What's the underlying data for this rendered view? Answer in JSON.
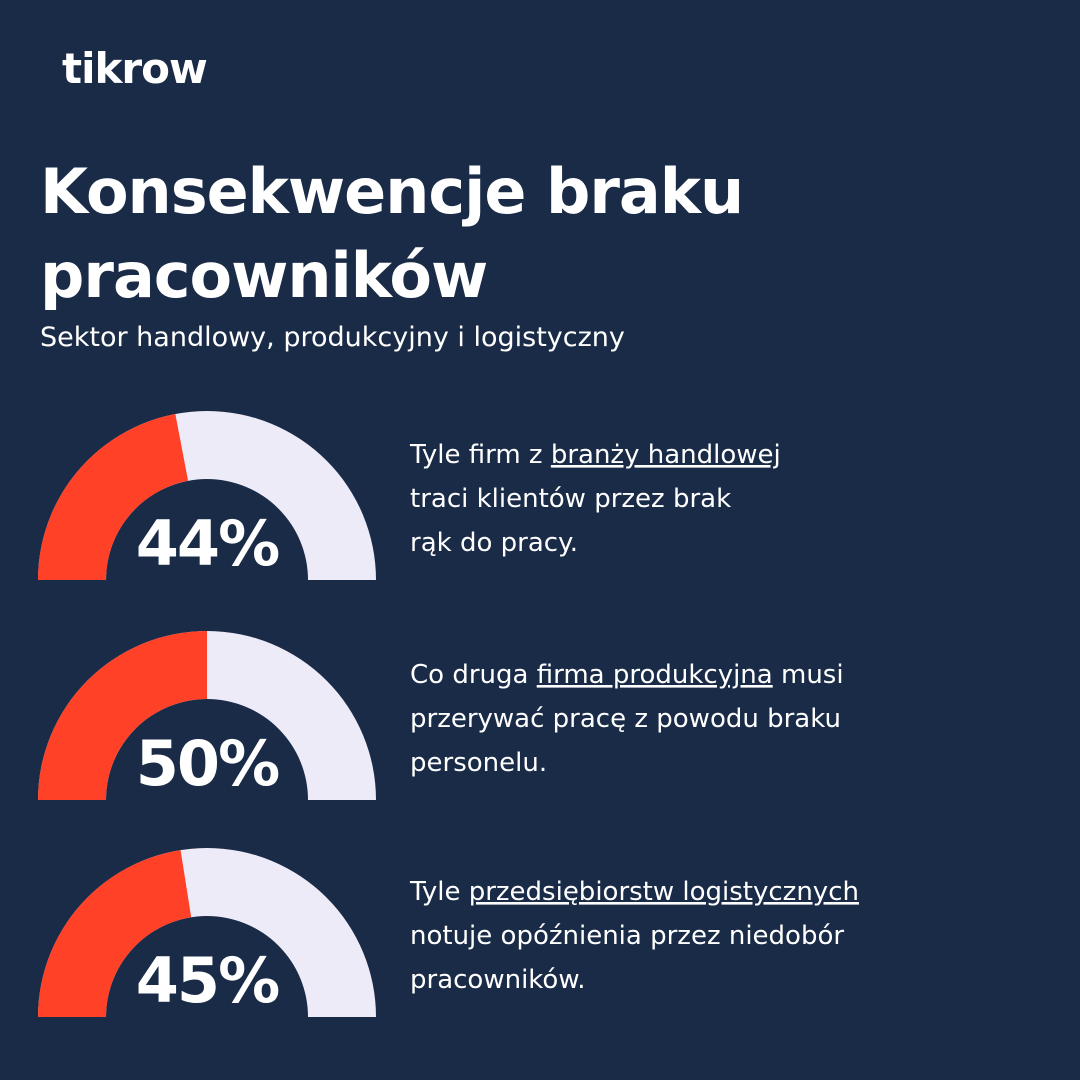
{
  "logo": "tikrow",
  "title": "Konsekwencje braku pracowników",
  "subtitle": "Sektor handlowy, produkcyjny i logistyczny",
  "chart_data": [
    {
      "type": "gauge",
      "values": [
        44
      ],
      "value_labels": [
        "44%"
      ],
      "ylim": [
        0,
        100
      ],
      "color": "#ff4128",
      "track_color": "#eeebf8",
      "description": [
        [
          {
            "text": "Tyle firm z "
          },
          {
            "text": "branży handlowej",
            "underline": true
          }
        ],
        [
          {
            "text": "traci klientów przez brak"
          }
        ],
        [
          {
            "text": "rąk do pracy."
          }
        ]
      ]
    },
    {
      "type": "gauge",
      "values": [
        50
      ],
      "value_labels": [
        "50%"
      ],
      "ylim": [
        0,
        100
      ],
      "color": "#ff4128",
      "track_color": "#eeebf8",
      "description": [
        [
          {
            "text": "Co druga "
          },
          {
            "text": "firma produkcyjna",
            "underline": true
          },
          {
            "text": " musi"
          }
        ],
        [
          {
            "text": "przerywać pracę z powodu braku"
          }
        ],
        [
          {
            "text": "personelu."
          }
        ]
      ]
    },
    {
      "type": "gauge",
      "values": [
        45
      ],
      "value_labels": [
        "45%"
      ],
      "ylim": [
        0,
        100
      ],
      "color": "#ff4128",
      "track_color": "#eeebf8",
      "description": [
        [
          {
            "text": "Tyle "
          },
          {
            "text": "przedsiębiorstw logistycznych",
            "underline": true
          }
        ],
        [
          {
            "text": "notuje opóźnienia przez niedobór"
          }
        ],
        [
          {
            "text": "pracowników."
          }
        ]
      ]
    }
  ]
}
